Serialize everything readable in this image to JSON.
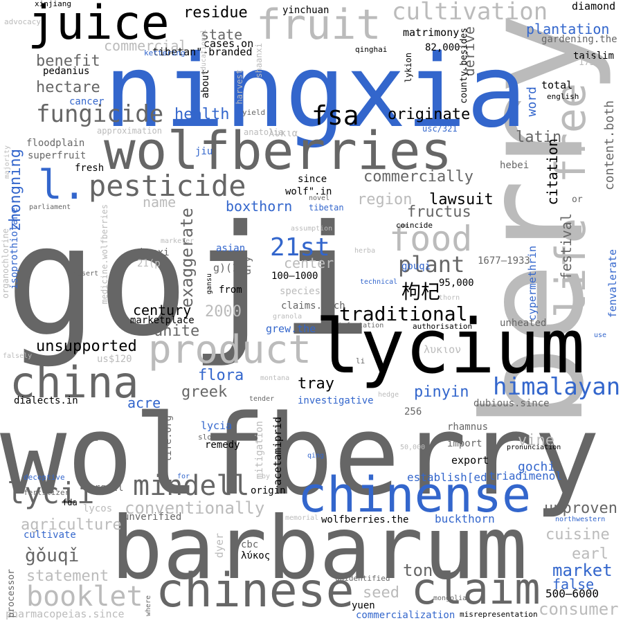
{
  "palette": {
    "dark": "#666666",
    "black": "#000000",
    "light": "#bbbbbb",
    "blue": "#3366cc"
  },
  "words": [
    {
      "text": "goji",
      "color": "dark"
    },
    {
      "text": "wolfberry",
      "color": "dark"
    },
    {
      "text": "berry",
      "color": "light"
    },
    {
      "text": "ningxia",
      "color": "blue"
    },
    {
      "text": "barbarum",
      "color": "dark"
    },
    {
      "text": "lycium",
      "color": "black"
    },
    {
      "text": "wolfberries",
      "color": "dark"
    },
    {
      "text": "chinense",
      "color": "blue"
    },
    {
      "text": "chinese",
      "color": "dark"
    },
    {
      "text": "china",
      "color": "dark"
    },
    {
      "text": "fruit",
      "color": "light"
    },
    {
      "text": "juice",
      "color": "black"
    },
    {
      "text": "free",
      "color": "light"
    },
    {
      "text": "life",
      "color": "light"
    },
    {
      "text": "product",
      "color": "light"
    },
    {
      "text": "claim",
      "color": "dark"
    },
    {
      "text": "l.",
      "color": "blue"
    },
    {
      "text": "pesticide",
      "color": "dark"
    },
    {
      "text": "food",
      "color": "light"
    },
    {
      "text": "cultivation",
      "color": "light"
    },
    {
      "text": "fsa",
      "color": "black"
    },
    {
      "text": "fungicide",
      "color": "dark"
    },
    {
      "text": "mindell",
      "color": "dark"
    },
    {
      "text": "lycii",
      "color": "dark"
    },
    {
      "text": "booklet",
      "color": "light"
    },
    {
      "text": "himalayan",
      "color": "blue"
    },
    {
      "text": "21st",
      "color": "blue"
    },
    {
      "text": "plant",
      "color": "dark"
    },
    {
      "text": "zhongning",
      "color": "blue"
    },
    {
      "text": "hectare",
      "color": "dark"
    },
    {
      "text": "benefit",
      "color": "dark"
    },
    {
      "text": "commercial",
      "color": "light"
    },
    {
      "text": "residue",
      "color": "black"
    },
    {
      "text": "state",
      "color": "dark"
    },
    {
      "text": "cases.on",
      "color": "black"
    },
    {
      "text": "tibetan\"-branded",
      "color": "black"
    },
    {
      "text": "yinchuan",
      "color": "black"
    },
    {
      "text": "matrimony",
      "color": "black"
    },
    {
      "text": "82,000",
      "color": "black"
    },
    {
      "text": "plantation",
      "color": "blue"
    },
    {
      "text": "gardening.the",
      "color": "dark"
    },
    {
      "text": "diamond",
      "color": "black"
    },
    {
      "text": "taislim",
      "color": "black"
    },
    {
      "text": "1730s",
      "color": "light"
    },
    {
      "text": "total",
      "color": "black"
    },
    {
      "text": "english",
      "color": "black"
    },
    {
      "text": "health",
      "color": "blue"
    },
    {
      "text": "originate",
      "color": "black"
    },
    {
      "text": "latin",
      "color": "dark"
    },
    {
      "text": "commercially",
      "color": "dark"
    },
    {
      "text": "lawsuit",
      "color": "black"
    },
    {
      "text": "fructus",
      "color": "dark"
    },
    {
      "text": "region",
      "color": "light"
    },
    {
      "text": "boxthorn",
      "color": "blue"
    },
    {
      "text": "name",
      "color": "light"
    },
    {
      "text": "exaggerate",
      "color": "dark"
    },
    {
      "text": "center",
      "color": "light"
    },
    {
      "text": "century",
      "color": "black"
    },
    {
      "text": "unite",
      "color": "dark"
    },
    {
      "text": "2000",
      "color": "light"
    },
    {
      "text": "traditional",
      "color": "black"
    },
    {
      "text": "unsupported",
      "color": "black"
    },
    {
      "text": "flora",
      "color": "blue"
    },
    {
      "text": "greek",
      "color": "dark"
    },
    {
      "text": "tray",
      "color": "black"
    },
    {
      "text": "pinyin",
      "color": "blue"
    },
    {
      "text": "acre",
      "color": "blue"
    },
    {
      "text": "conventionally",
      "color": "light"
    },
    {
      "text": "agriculture",
      "color": "light"
    },
    {
      "text": "g̀ǒuqǐ",
      "color": "dark"
    },
    {
      "text": "statement",
      "color": "light"
    },
    {
      "text": "cultivate",
      "color": "blue"
    },
    {
      "text": "market",
      "color": "blue"
    },
    {
      "text": "false",
      "color": "blue"
    },
    {
      "text": "earl",
      "color": "light"
    },
    {
      "text": "cuisine",
      "color": "light"
    },
    {
      "text": "unproven",
      "color": "dark"
    },
    {
      "text": "vine",
      "color": "light"
    },
    {
      "text": "gochi",
      "color": "blue"
    },
    {
      "text": "triadimenol",
      "color": "blue"
    },
    {
      "text": "establish[ed",
      "color": "blue"
    },
    {
      "text": "buckthorn",
      "color": "blue"
    },
    {
      "text": "seed",
      "color": "light"
    },
    {
      "text": "ton",
      "color": "dark"
    },
    {
      "text": "consumer",
      "color": "light"
    },
    {
      "text": "500–6000",
      "color": "black"
    },
    {
      "text": "commercialization",
      "color": "blue"
    },
    {
      "text": "yuen",
      "color": "black"
    },
    {
      "text": "misrepresentation",
      "color": "black"
    },
    {
      "text": "pharmacopeias.since",
      "color": "light"
    },
    {
      "text": "citation",
      "color": "black"
    },
    {
      "text": "festival",
      "color": "dark"
    },
    {
      "text": "word",
      "color": "blue"
    },
    {
      "text": "derive",
      "color": "dark"
    },
    {
      "text": "content.both",
      "color": "dark"
    },
    {
      "text": "hebei",
      "color": "dark"
    },
    {
      "text": "cypermethrin",
      "color": "blue"
    },
    {
      "text": "fenvalerate",
      "color": "blue"
    },
    {
      "text": "unheated",
      "color": "dark"
    },
    {
      "text": "95,000",
      "color": "black"
    },
    {
      "text": "1677–1933",
      "color": "dark"
    },
    {
      "text": "枸杞",
      "color": "black"
    },
    {
      "text": "gouqi",
      "color": "blue"
    },
    {
      "text": "asian",
      "color": "blue"
    },
    {
      "text": "g)(1",
      "color": "dark"
    },
    {
      "text": "dry",
      "color": "dark"
    },
    {
      "text": "100–1000",
      "color": "black"
    },
    {
      "text": "from",
      "color": "black"
    },
    {
      "text": "species",
      "color": "light"
    },
    {
      "text": "claims.such",
      "color": "dark"
    },
    {
      "text": "grew.the",
      "color": "blue"
    },
    {
      "text": "λυκιον",
      "color": "light"
    },
    {
      "text": "λυκια",
      "color": "light"
    },
    {
      "text": "usc/321",
      "color": "blue"
    },
    {
      "text": "county.besides",
      "color": "black"
    },
    {
      "text": "lykion",
      "color": "black"
    },
    {
      "text": "qinghai",
      "color": "black"
    },
    {
      "text": "xinjiang",
      "color": "black"
    },
    {
      "text": "advocacy",
      "color": "light"
    },
    {
      "text": "kettering",
      "color": "blue"
    },
    {
      "text": "pedanius",
      "color": "black"
    },
    {
      "text": "cancer",
      "color": "blue"
    },
    {
      "text": "approximation",
      "color": "light"
    },
    {
      "text": "floodplain",
      "color": "dark"
    },
    {
      "text": "superfruit",
      "color": "dark"
    },
    {
      "text": "fresh",
      "color": "black"
    },
    {
      "text": "majority",
      "color": "light"
    },
    {
      "text": "jiu",
      "color": "blue"
    },
    {
      "text": "parliament",
      "color": "dark"
    },
    {
      "text": "isoprothiolane",
      "color": "blue"
    },
    {
      "text": "organochlorine",
      "color": "light"
    },
    {
      "text": "medicine.wolfberries",
      "color": "light"
    },
    {
      "text": "about",
      "color": "black"
    },
    {
      "text": "educational",
      "color": "light"
    },
    {
      "text": "harvest",
      "color": "light"
    },
    {
      "text": "shaanxi",
      "color": "light"
    },
    {
      "text": "yield",
      "color": "dark"
    },
    {
      "text": "anatolia",
      "color": "light"
    },
    {
      "text": "since",
      "color": "black"
    },
    {
      "text": "wolf\".in",
      "color": "black"
    },
    {
      "text": "novel",
      "color": "dark"
    },
    {
      "text": "tibetan",
      "color": "blue"
    },
    {
      "text": "or",
      "color": "dark"
    },
    {
      "text": "assumption",
      "color": "light"
    },
    {
      "text": "coincide",
      "color": "black"
    },
    {
      "text": "herba",
      "color": "light"
    },
    {
      "text": "technical",
      "color": "blue"
    },
    {
      "text": "thorn",
      "color": "light"
    },
    {
      "text": "marketer",
      "color": "light"
    },
    {
      "text": "shanxi",
      "color": "dark"
    },
    {
      "text": "21(p",
      "color": "light"
    },
    {
      "text": "desert",
      "color": "dark"
    },
    {
      "text": "marketplace",
      "color": "black"
    },
    {
      "text": "remedy",
      "color": "black"
    },
    {
      "text": "gansu",
      "color": "black"
    },
    {
      "text": "granola",
      "color": "light"
    },
    {
      "text": "infestation",
      "color": "dark"
    },
    {
      "text": "authorisation",
      "color": "black"
    },
    {
      "text": "use",
      "color": "blue"
    },
    {
      "text": "us$120",
      "color": "light"
    },
    {
      "text": "li",
      "color": "dark"
    },
    {
      "text": "falsely",
      "color": "light"
    },
    {
      "text": "montana",
      "color": "light"
    },
    {
      "text": "dialects.in",
      "color": "black"
    },
    {
      "text": "tender",
      "color": "dark"
    },
    {
      "text": "investigative",
      "color": "blue"
    },
    {
      "text": "hedge",
      "color": "light"
    },
    {
      "text": "dubious.since",
      "color": "dark"
    },
    {
      "text": "256",
      "color": "dark"
    },
    {
      "text": "rhamnus",
      "color": "dark"
    },
    {
      "text": "import",
      "color": "dark"
    },
    {
      "text": "export",
      "color": "black"
    },
    {
      "text": "pronunciation",
      "color": "black"
    },
    {
      "text": "life.org",
      "color": "dark"
    },
    {
      "text": "lycia",
      "color": "blue"
    },
    {
      "text": "sloan",
      "color": "dark"
    },
    {
      "text": "mu",
      "color": "dark"
    },
    {
      "text": "acetamiprid",
      "color": "black"
    },
    {
      "text": "mitigation",
      "color": "light"
    },
    {
      "text": "qing",
      "color": "blue"
    },
    {
      "text": "50,000",
      "color": "light"
    },
    {
      "text": "deceptive",
      "color": "blue"
    },
    {
      "text": "for",
      "color": "blue"
    },
    {
      "text": "argyll",
      "color": "dark"
    },
    {
      "text": "by",
      "color": "light"
    },
    {
      "text": "origin",
      "color": "black"
    },
    {
      "text": "fertilizer",
      "color": "dark"
    },
    {
      "text": "fda",
      "color": "black"
    },
    {
      "text": "lycos",
      "color": "light"
    },
    {
      "text": "unverified",
      "color": "dark"
    },
    {
      "text": "memorial",
      "color": "light"
    },
    {
      "text": "wolfberries.the",
      "color": "black"
    },
    {
      "text": "northwestern",
      "color": "blue"
    },
    {
      "text": "processor",
      "color": "dark"
    },
    {
      "text": "dyer",
      "color": "light"
    },
    {
      "text": "cbc",
      "color": "dark"
    },
    {
      "text": "λύκος",
      "color": "black"
    },
    {
      "text": "unidentified",
      "color": "dark"
    },
    {
      "text": "mongolia",
      "color": "dark"
    },
    {
      "text": "where",
      "color": "dark"
    }
  ]
}
